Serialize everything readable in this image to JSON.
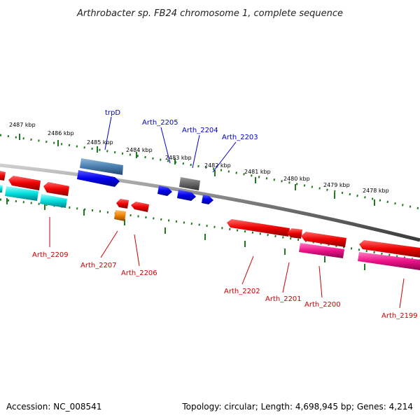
{
  "title": "Arthrobacter sp. FB24 chromosome 1, complete sequence",
  "ticks": [
    "2487 kbp",
    "2486 kbp",
    "2485 kbp",
    "2484 kbp",
    "2483 kbp",
    "2482 kbp",
    "2481 kbp",
    "2480 kbp",
    "2479 kbp",
    "2478 kbp"
  ],
  "gene_labels_top": [
    "trpD",
    "Arth_2205",
    "Arth_2204",
    "Arth_2203"
  ],
  "gene_labels_bottom": [
    "Arth_2209",
    "Arth_2207",
    "Arth_2206",
    "Arth_2202",
    "Arth_2201",
    "Arth_2200",
    "Arth_2199"
  ],
  "footer": {
    "accession": "Accession: NC_008541",
    "summary": "Topology: circular; Length: 4,698,945 bp; Genes: 4,214"
  },
  "colors": {
    "forward_gene": "#0000ee",
    "reverse_gene": "#ee0000",
    "label_top": "#0000cc",
    "label_bottom": "#cc0000",
    "tick": "#1f7a1f",
    "backbone": "#808080",
    "trpD": "#4a7fb0",
    "hypothetical": "#666666",
    "cyan_gene": "#00dede",
    "pink_gene": "#ee1188",
    "orange_gene": "#f08000"
  }
}
